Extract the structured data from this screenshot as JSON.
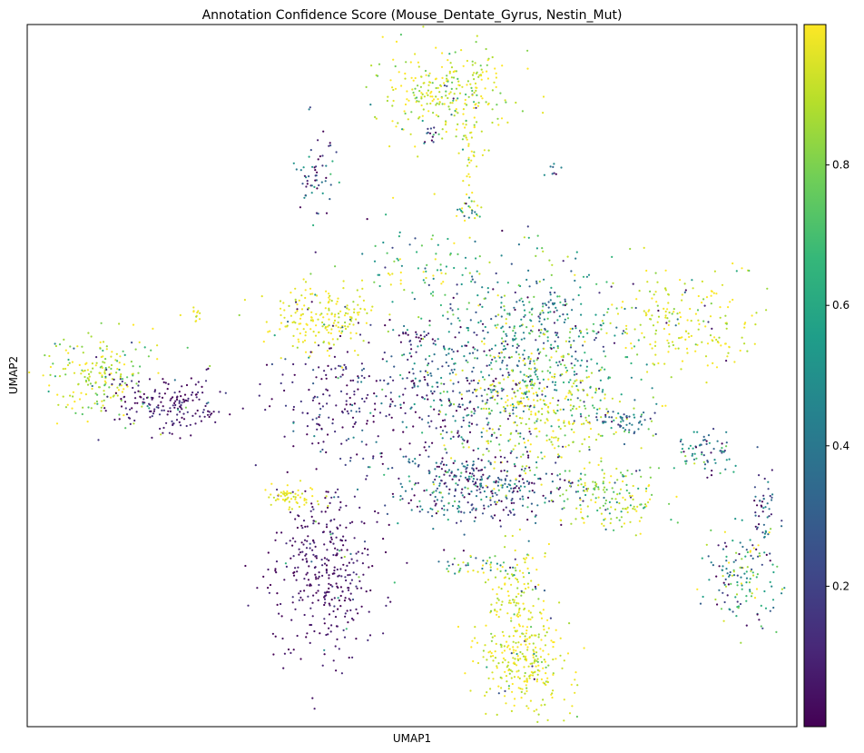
{
  "chart_data": {
    "type": "scatter",
    "title": "Annotation Confidence Score (Mouse_Dentate_Gyrus, Nestin_Mut)",
    "xlabel": "UMAP1",
    "ylabel": "UMAP2",
    "x_ticks": "none",
    "y_ticks": "none",
    "grid": false,
    "legend": "none",
    "colormap": "viridis",
    "colormap_stops": [
      "#440154",
      "#482878",
      "#3e4989",
      "#31688e",
      "#26828e",
      "#1f9e89",
      "#35b779",
      "#6ece58",
      "#b5de2b",
      "#fde725"
    ],
    "colorbar": {
      "position": "right",
      "range": [
        0.0,
        1.0
      ],
      "ticks": [
        {
          "value": 0.2,
          "label": "0.2"
        },
        {
          "value": 0.4,
          "label": "0.4"
        },
        {
          "value": 0.6,
          "label": "0.6"
        },
        {
          "value": 0.8,
          "label": "0.8"
        }
      ]
    },
    "clusters": [
      {
        "x": 0.545,
        "y": 0.9,
        "sx": 0.045,
        "sy": 0.035,
        "n": 280,
        "score": 0.92,
        "spread": 0.12
      },
      {
        "x": 0.575,
        "y": 0.82,
        "sx": 0.007,
        "sy": 0.045,
        "n": 40,
        "score": 0.97,
        "spread": 0.05
      },
      {
        "x": 0.375,
        "y": 0.78,
        "sx": 0.013,
        "sy": 0.035,
        "n": 60,
        "score": 0.25,
        "spread": 0.25
      },
      {
        "x": 0.385,
        "y": 0.58,
        "sx": 0.035,
        "sy": 0.025,
        "n": 200,
        "score": 0.97,
        "spread": 0.05
      },
      {
        "x": 0.1,
        "y": 0.5,
        "sx": 0.035,
        "sy": 0.028,
        "n": 200,
        "score": 0.9,
        "spread": 0.15
      },
      {
        "x": 0.175,
        "y": 0.46,
        "sx": 0.04,
        "sy": 0.02,
        "n": 170,
        "score": 0.05,
        "spread": 0.08
      },
      {
        "x": 0.235,
        "y": 0.445,
        "sx": 0.008,
        "sy": 0.006,
        "n": 12,
        "score": 0.05,
        "spread": 0.05
      },
      {
        "x": 0.22,
        "y": 0.588,
        "sx": 0.007,
        "sy": 0.008,
        "n": 12,
        "score": 0.97,
        "spread": 0.05
      },
      {
        "x": 0.385,
        "y": 0.218,
        "sx": 0.035,
        "sy": 0.06,
        "n": 360,
        "score": 0.05,
        "spread": 0.06
      },
      {
        "x": 0.34,
        "y": 0.325,
        "sx": 0.02,
        "sy": 0.008,
        "n": 60,
        "score": 0.97,
        "spread": 0.04
      },
      {
        "x": 0.4,
        "y": 0.47,
        "sx": 0.045,
        "sy": 0.05,
        "n": 160,
        "score": 0.1,
        "spread": 0.12
      },
      {
        "x": 0.54,
        "y": 0.47,
        "sx": 0.05,
        "sy": 0.06,
        "n": 320,
        "score": 0.2,
        "spread": 0.22
      },
      {
        "x": 0.66,
        "y": 0.55,
        "sx": 0.06,
        "sy": 0.06,
        "n": 520,
        "score": 0.5,
        "spread": 0.25
      },
      {
        "x": 0.66,
        "y": 0.45,
        "sx": 0.05,
        "sy": 0.04,
        "n": 300,
        "score": 0.93,
        "spread": 0.1
      },
      {
        "x": 0.59,
        "y": 0.34,
        "sx": 0.07,
        "sy": 0.025,
        "n": 380,
        "score": 0.25,
        "spread": 0.25
      },
      {
        "x": 0.755,
        "y": 0.33,
        "sx": 0.035,
        "sy": 0.025,
        "n": 160,
        "score": 0.85,
        "spread": 0.15
      },
      {
        "x": 0.775,
        "y": 0.435,
        "sx": 0.02,
        "sy": 0.01,
        "n": 60,
        "score": 0.35,
        "spread": 0.15
      },
      {
        "x": 0.855,
        "y": 0.58,
        "sx": 0.05,
        "sy": 0.04,
        "n": 200,
        "score": 0.96,
        "spread": 0.07
      },
      {
        "x": 0.885,
        "y": 0.39,
        "sx": 0.02,
        "sy": 0.016,
        "n": 70,
        "score": 0.4,
        "spread": 0.2
      },
      {
        "x": 0.93,
        "y": 0.22,
        "sx": 0.026,
        "sy": 0.035,
        "n": 150,
        "score": 0.55,
        "spread": 0.3
      },
      {
        "x": 0.955,
        "y": 0.31,
        "sx": 0.008,
        "sy": 0.02,
        "n": 40,
        "score": 0.2,
        "spread": 0.15
      },
      {
        "x": 0.645,
        "y": 0.1,
        "sx": 0.03,
        "sy": 0.045,
        "n": 300,
        "score": 0.96,
        "spread": 0.08
      },
      {
        "x": 0.635,
        "y": 0.2,
        "sx": 0.02,
        "sy": 0.035,
        "n": 100,
        "score": 0.95,
        "spread": 0.08
      },
      {
        "x": 0.59,
        "y": 0.23,
        "sx": 0.03,
        "sy": 0.01,
        "n": 40,
        "score": 0.55,
        "spread": 0.3
      },
      {
        "x": 0.52,
        "y": 0.65,
        "sx": 0.04,
        "sy": 0.03,
        "n": 80,
        "score": 0.7,
        "spread": 0.3
      },
      {
        "x": 0.575,
        "y": 0.735,
        "sx": 0.008,
        "sy": 0.01,
        "n": 20,
        "score": 0.55,
        "spread": 0.3
      },
      {
        "x": 0.525,
        "y": 0.84,
        "sx": 0.004,
        "sy": 0.008,
        "n": 12,
        "score": 0.2,
        "spread": 0.2
      },
      {
        "x": 0.685,
        "y": 0.795,
        "sx": 0.004,
        "sy": 0.006,
        "n": 8,
        "score": 0.5,
        "spread": 0.3
      },
      {
        "x": 0.5,
        "y": 0.555,
        "sx": 0.012,
        "sy": 0.006,
        "n": 20,
        "score": 0.05,
        "spread": 0.1
      }
    ]
  }
}
